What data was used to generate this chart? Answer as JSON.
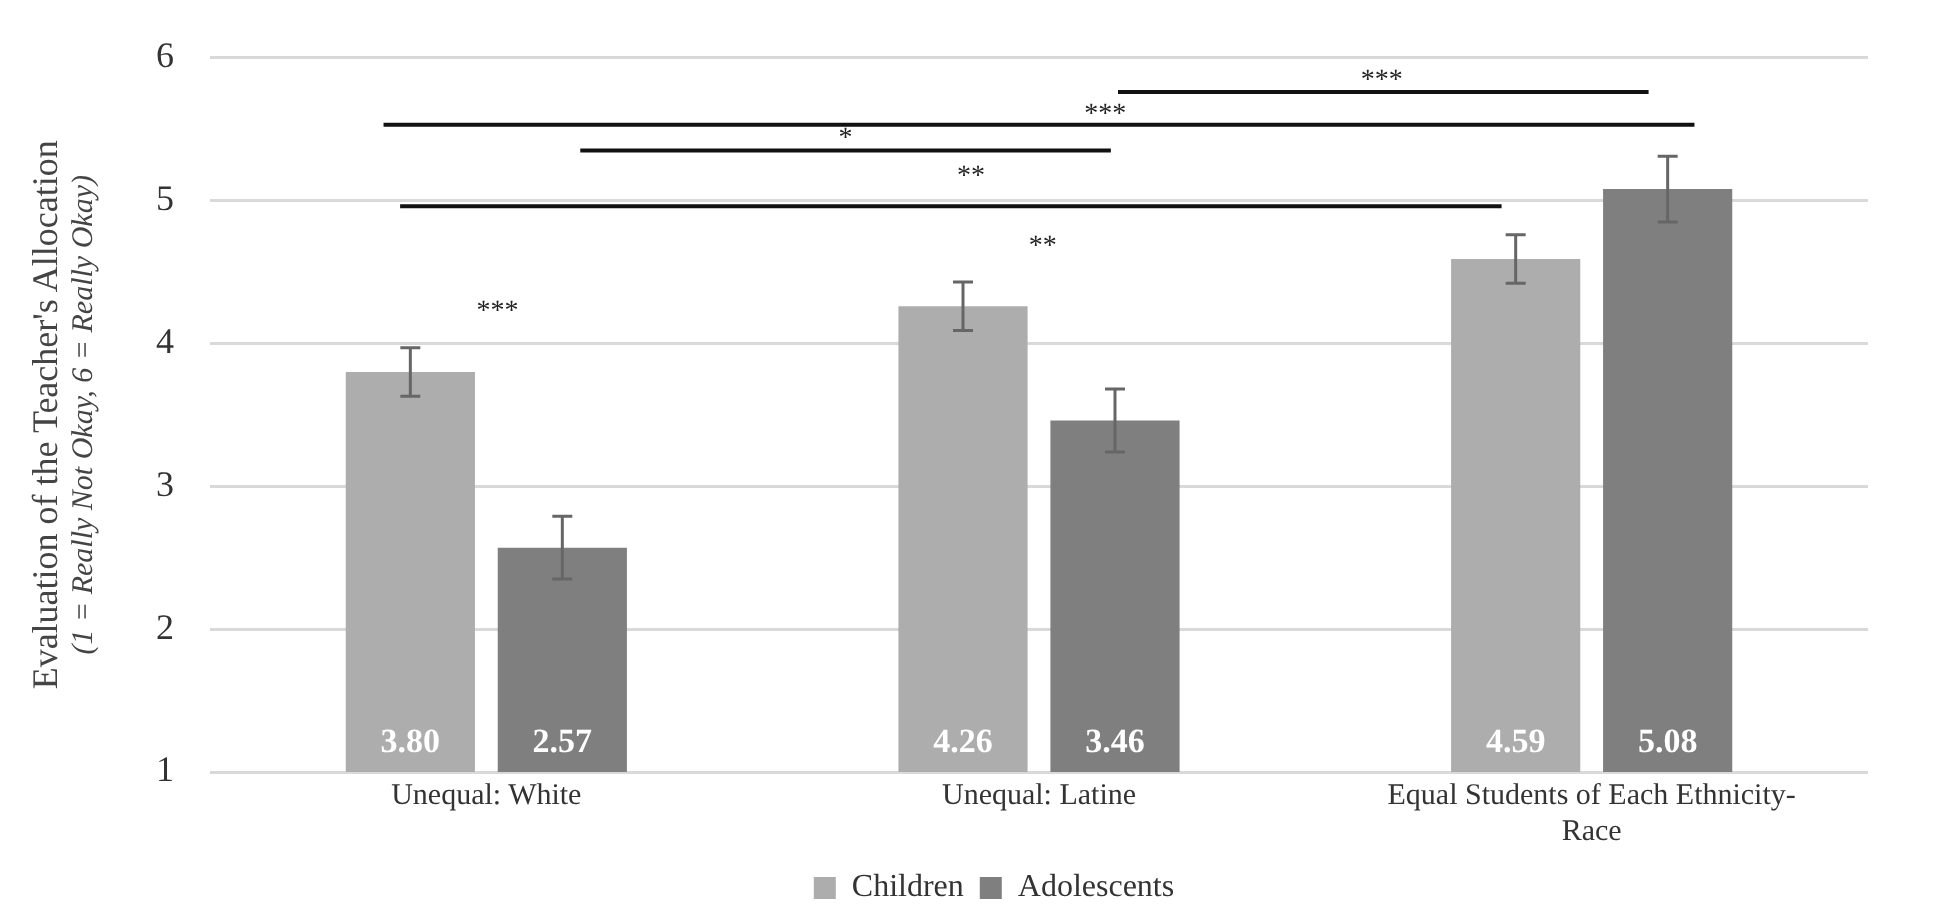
{
  "chart_data": {
    "type": "bar",
    "ylabel": "Evaluation of the Teacher's Allocation\n(1 = Really Not Okay, 6 = Really Okay)",
    "categories": [
      "Unequal: White",
      "Unequal: Latine",
      "Equal Students of Each Ethnicity-Race"
    ],
    "series": [
      {
        "name": "Children",
        "color": "#adadad",
        "values": [
          3.8,
          4.26,
          4.59
        ],
        "errors": [
          0.17,
          0.17,
          0.17
        ],
        "value_labels": [
          "3.80",
          "4.26",
          "4.59"
        ]
      },
      {
        "name": "Adolescents",
        "color": "#7f7f7f",
        "values": [
          2.57,
          3.46,
          5.08
        ],
        "errors": [
          0.22,
          0.22,
          0.23
        ],
        "value_labels": [
          "2.57",
          "3.46",
          "5.08"
        ]
      }
    ],
    "ylim": [
      1,
      6
    ],
    "yticks": [
      1,
      2,
      3,
      4,
      5,
      6
    ],
    "grid": "y",
    "legend": "bottom",
    "annotations": [
      "***",
      "***",
      "*",
      "**",
      "**",
      "***"
    ]
  }
}
